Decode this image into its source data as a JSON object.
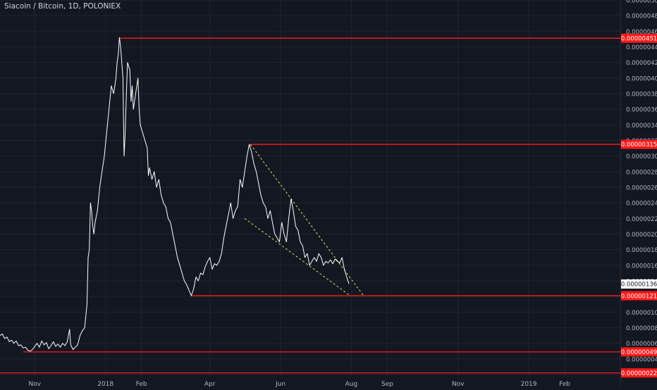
{
  "chart_data": {
    "type": "line",
    "title": "Siacoin / Bitcoin, 1D, POLONIEX",
    "y_ticks": [
      "0.00000020",
      "0.00000040",
      "0.00000060",
      "0.00000080",
      "0.00000100",
      "0.00000120",
      "0.00000140",
      "0.00000160",
      "0.00000180",
      "0.00000200",
      "0.00000220",
      "0.00000240",
      "0.00000260",
      "0.00000280",
      "0.00000300",
      "0.00000320",
      "0.00000340",
      "0.00000360",
      "0.00000380",
      "0.00000400",
      "0.00000420",
      "0.00000440",
      "0.00000460",
      "0.00000480",
      "0.00000500"
    ],
    "x_ticks": [
      {
        "label": "Nov",
        "date": "2017-11-01"
      },
      {
        "label": "2018",
        "date": "2018-01-01"
      },
      {
        "label": "Feb",
        "date": "2018-02-01"
      },
      {
        "label": "Apr",
        "date": "2018-04-01"
      },
      {
        "label": "Jun",
        "date": "2018-06-01"
      },
      {
        "label": "Aug",
        "date": "2018-08-01"
      },
      {
        "label": "Sep",
        "date": "2018-09-01"
      },
      {
        "label": "Nov",
        "date": "2018-11-01"
      },
      {
        "label": "2019",
        "date": "2019-01-01"
      },
      {
        "label": "Feb",
        "date": "2019-02-01"
      }
    ],
    "ylim": [
      2e-07,
      5e-06
    ],
    "xlim": [
      "2017-10-02",
      "2019-03-21"
    ],
    "grid": true,
    "current_price": {
      "value": 1.36e-06,
      "label": "0.00000136"
    },
    "horizontal_levels": [
      {
        "value": 4.51e-06,
        "label": "0.00000451",
        "from": "2018-01-13"
      },
      {
        "value": 3.15e-06,
        "label": "0.00000315",
        "from": "2018-05-06"
      },
      {
        "value": 1.21e-06,
        "label": "0.00000121",
        "from": "2018-03-16"
      },
      {
        "value": 4.9e-07,
        "label": "0.00000049",
        "from": "2017-10-22"
      },
      {
        "value": 2.2e-07,
        "label": "0.00000022",
        "from": "2017-10-02"
      }
    ],
    "wedge_lines": [
      {
        "from": [
          "2018-05-06",
          3.15e-06
        ],
        "to": [
          "2018-08-11",
          1.22e-06
        ]
      },
      {
        "from": [
          "2018-05-01",
          2.2e-06
        ],
        "to": [
          "2018-07-31",
          1.21e-06
        ]
      }
    ],
    "series": [
      {
        "color": "#ffffff",
        "points": [
          [
            "2017-10-02",
            7e-07
          ],
          [
            "2017-10-04",
            7.2e-07
          ],
          [
            "2017-10-06",
            6.6e-07
          ],
          [
            "2017-10-08",
            6.8e-07
          ],
          [
            "2017-10-10",
            6.2e-07
          ],
          [
            "2017-10-12",
            6.4e-07
          ],
          [
            "2017-10-14",
            6e-07
          ],
          [
            "2017-10-16",
            6.3e-07
          ],
          [
            "2017-10-18",
            5.7e-07
          ],
          [
            "2017-10-20",
            5.8e-07
          ],
          [
            "2017-10-22",
            5.4e-07
          ],
          [
            "2017-10-24",
            5.5e-07
          ],
          [
            "2017-10-26",
            5.1e-07
          ],
          [
            "2017-10-28",
            5e-07
          ],
          [
            "2017-10-30",
            5.2e-07
          ],
          [
            "2017-11-01",
            5.6e-07
          ],
          [
            "2017-11-03",
            6e-07
          ],
          [
            "2017-11-05",
            5.5e-07
          ],
          [
            "2017-11-07",
            6.3e-07
          ],
          [
            "2017-11-09",
            5.8e-07
          ],
          [
            "2017-11-11",
            6.1e-07
          ],
          [
            "2017-11-13",
            5.3e-07
          ],
          [
            "2017-11-15",
            5.7e-07
          ],
          [
            "2017-11-17",
            6.2e-07
          ],
          [
            "2017-11-19",
            5.6e-07
          ],
          [
            "2017-11-21",
            5.9e-07
          ],
          [
            "2017-11-23",
            5.5e-07
          ],
          [
            "2017-11-25",
            6e-07
          ],
          [
            "2017-11-27",
            5.7e-07
          ],
          [
            "2017-11-29",
            6.2e-07
          ],
          [
            "2017-12-01",
            7.8e-07
          ],
          [
            "2017-12-02",
            5.8e-07
          ],
          [
            "2017-12-04",
            5.2e-07
          ],
          [
            "2017-12-06",
            5.5e-07
          ],
          [
            "2017-12-08",
            5.8e-07
          ],
          [
            "2017-12-10",
            7e-07
          ],
          [
            "2017-12-12",
            7.6e-07
          ],
          [
            "2017-12-14",
            8e-07
          ],
          [
            "2017-12-16",
            1.1e-06
          ],
          [
            "2017-12-17",
            1.7e-06
          ],
          [
            "2017-12-18",
            1.8e-06
          ],
          [
            "2017-12-19",
            2.4e-06
          ],
          [
            "2017-12-20",
            2.3e-06
          ],
          [
            "2017-12-21",
            2.1e-06
          ],
          [
            "2017-12-22",
            2e-06
          ],
          [
            "2017-12-23",
            2.15e-06
          ],
          [
            "2017-12-25",
            2.3e-06
          ],
          [
            "2017-12-27",
            2.6e-06
          ],
          [
            "2017-12-29",
            2.8e-06
          ],
          [
            "2017-12-31",
            3e-06
          ],
          [
            "2018-01-02",
            3.3e-06
          ],
          [
            "2018-01-04",
            3.6e-06
          ],
          [
            "2018-01-06",
            3.9e-06
          ],
          [
            "2018-01-08",
            3.8e-06
          ],
          [
            "2018-01-10",
            4e-06
          ],
          [
            "2018-01-11",
            4.2e-06
          ],
          [
            "2018-01-12",
            4.3e-06
          ],
          [
            "2018-01-13",
            4.52e-06
          ],
          [
            "2018-01-14",
            4.4e-06
          ],
          [
            "2018-01-16",
            4e-06
          ],
          [
            "2018-01-17",
            3e-06
          ],
          [
            "2018-01-18",
            3.3e-06
          ],
          [
            "2018-01-19",
            3.8e-06
          ],
          [
            "2018-01-20",
            4.2e-06
          ],
          [
            "2018-01-22",
            4.1e-06
          ],
          [
            "2018-01-23",
            3.7e-06
          ],
          [
            "2018-01-24",
            3.9e-06
          ],
          [
            "2018-01-25",
            3.6e-06
          ],
          [
            "2018-01-27",
            3.8e-06
          ],
          [
            "2018-01-28",
            3.9e-06
          ],
          [
            "2018-01-29",
            4e-06
          ],
          [
            "2018-01-30",
            3.6e-06
          ],
          [
            "2018-01-31",
            3.4e-06
          ],
          [
            "2018-02-02",
            3.3e-06
          ],
          [
            "2018-02-04",
            3.2e-06
          ],
          [
            "2018-02-06",
            3.1e-06
          ],
          [
            "2018-02-07",
            2.75e-06
          ],
          [
            "2018-02-08",
            2.85e-06
          ],
          [
            "2018-02-10",
            2.7e-06
          ],
          [
            "2018-02-12",
            2.8e-06
          ],
          [
            "2018-02-14",
            2.6e-06
          ],
          [
            "2018-02-16",
            2.7e-06
          ],
          [
            "2018-02-18",
            2.5e-06
          ],
          [
            "2018-02-20",
            2.4e-06
          ],
          [
            "2018-02-22",
            2.35e-06
          ],
          [
            "2018-02-24",
            2.2e-06
          ],
          [
            "2018-02-26",
            2.15e-06
          ],
          [
            "2018-02-28",
            2e-06
          ],
          [
            "2018-03-02",
            1.85e-06
          ],
          [
            "2018-03-04",
            1.7e-06
          ],
          [
            "2018-03-06",
            1.6e-06
          ],
          [
            "2018-03-08",
            1.5e-06
          ],
          [
            "2018-03-10",
            1.4e-06
          ],
          [
            "2018-03-12",
            1.35e-06
          ],
          [
            "2018-03-14",
            1.28e-06
          ],
          [
            "2018-03-16",
            1.21e-06
          ],
          [
            "2018-03-18",
            1.3e-06
          ],
          [
            "2018-03-20",
            1.45e-06
          ],
          [
            "2018-03-22",
            1.4e-06
          ],
          [
            "2018-03-24",
            1.5e-06
          ],
          [
            "2018-03-26",
            1.48e-06
          ],
          [
            "2018-03-28",
            1.58e-06
          ],
          [
            "2018-03-30",
            1.65e-06
          ],
          [
            "2018-04-01",
            1.7e-06
          ],
          [
            "2018-04-03",
            1.55e-06
          ],
          [
            "2018-04-05",
            1.62e-06
          ],
          [
            "2018-04-07",
            1.6e-06
          ],
          [
            "2018-04-09",
            1.65e-06
          ],
          [
            "2018-04-11",
            1.75e-06
          ],
          [
            "2018-04-13",
            1.95e-06
          ],
          [
            "2018-04-15",
            2.1e-06
          ],
          [
            "2018-04-17",
            2.25e-06
          ],
          [
            "2018-04-19",
            2.4e-06
          ],
          [
            "2018-04-21",
            2.2e-06
          ],
          [
            "2018-04-23",
            2.3e-06
          ],
          [
            "2018-04-25",
            2.35e-06
          ],
          [
            "2018-04-27",
            2.7e-06
          ],
          [
            "2018-04-29",
            2.6e-06
          ],
          [
            "2018-05-01",
            2.8e-06
          ],
          [
            "2018-05-03",
            3e-06
          ],
          [
            "2018-05-05",
            3.15e-06
          ],
          [
            "2018-05-07",
            3.05e-06
          ],
          [
            "2018-05-09",
            2.9e-06
          ],
          [
            "2018-05-11",
            2.8e-06
          ],
          [
            "2018-05-13",
            2.65e-06
          ],
          [
            "2018-05-15",
            2.5e-06
          ],
          [
            "2018-05-17",
            2.4e-06
          ],
          [
            "2018-05-19",
            2.35e-06
          ],
          [
            "2018-05-21",
            2.2e-06
          ],
          [
            "2018-05-23",
            2.3e-06
          ],
          [
            "2018-05-25",
            2.15e-06
          ],
          [
            "2018-05-27",
            2e-06
          ],
          [
            "2018-05-29",
            1.95e-06
          ],
          [
            "2018-05-31",
            1.9e-06
          ],
          [
            "2018-06-02",
            2.15e-06
          ],
          [
            "2018-06-04",
            2e-06
          ],
          [
            "2018-06-06",
            1.9e-06
          ],
          [
            "2018-06-08",
            2.2e-06
          ],
          [
            "2018-06-10",
            2.45e-06
          ],
          [
            "2018-06-12",
            2.3e-06
          ],
          [
            "2018-06-14",
            2.1e-06
          ],
          [
            "2018-06-16",
            2.05e-06
          ],
          [
            "2018-06-18",
            1.9e-06
          ],
          [
            "2018-06-20",
            1.85e-06
          ],
          [
            "2018-06-22",
            1.7e-06
          ],
          [
            "2018-06-24",
            1.75e-06
          ],
          [
            "2018-06-26",
            1.6e-06
          ],
          [
            "2018-06-28",
            1.65e-06
          ],
          [
            "2018-06-30",
            1.7e-06
          ],
          [
            "2018-07-02",
            1.65e-06
          ],
          [
            "2018-07-04",
            1.75e-06
          ],
          [
            "2018-07-06",
            1.7e-06
          ],
          [
            "2018-07-08",
            1.6e-06
          ],
          [
            "2018-07-10",
            1.65e-06
          ],
          [
            "2018-07-12",
            1.63e-06
          ],
          [
            "2018-07-14",
            1.67e-06
          ],
          [
            "2018-07-16",
            1.62e-06
          ],
          [
            "2018-07-18",
            1.68e-06
          ],
          [
            "2018-07-20",
            1.65e-06
          ],
          [
            "2018-07-22",
            1.63e-06
          ],
          [
            "2018-07-24",
            1.7e-06
          ],
          [
            "2018-07-26",
            1.55e-06
          ],
          [
            "2018-07-28",
            1.45e-06
          ],
          [
            "2018-07-30",
            1.36e-06
          ]
        ]
      }
    ]
  }
}
